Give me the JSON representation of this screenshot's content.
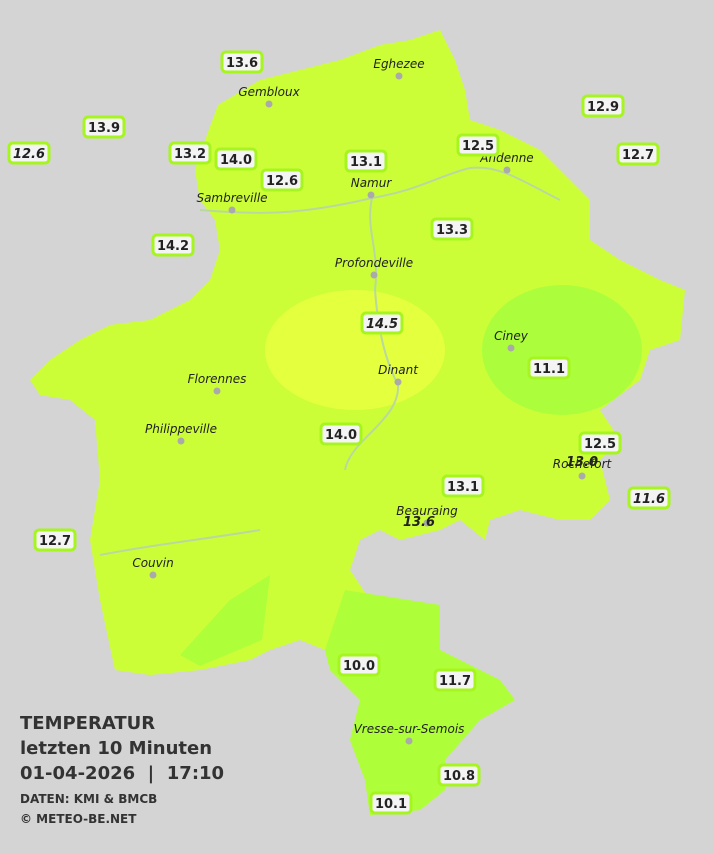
{
  "map": {
    "towns": [
      "Eghezee",
      "Gembloux",
      "Andenne",
      "Namur",
      "Sambreville",
      "Profondeville",
      "Ciney",
      "Dinant",
      "Florennes",
      "Philippeville",
      "Rochefort",
      "Beauraing",
      "Couvin",
      "Vresse-sur-Semois"
    ],
    "stations": [
      {
        "value": "13.6"
      },
      {
        "value": "13.9"
      },
      {
        "value": "12.6",
        "italic": true
      },
      {
        "value": "13.2"
      },
      {
        "value": "14.0"
      },
      {
        "value": "12.6"
      },
      {
        "value": "13.1"
      },
      {
        "value": "12.5"
      },
      {
        "value": "12.9"
      },
      {
        "value": "12.7"
      },
      {
        "value": "14.2"
      },
      {
        "value": "13.3"
      },
      {
        "value": "14.5",
        "italic": true
      },
      {
        "value": "11.1"
      },
      {
        "value": "14.0"
      },
      {
        "value": "12.5"
      },
      {
        "value": "13.0",
        "italic": true,
        "box": false
      },
      {
        "value": "13.1"
      },
      {
        "value": "11.6",
        "italic": true
      },
      {
        "value": "13.6",
        "italic": true,
        "box": false
      },
      {
        "value": "12.7"
      },
      {
        "value": "10.0"
      },
      {
        "value": "11.7"
      },
      {
        "value": "10.8"
      },
      {
        "value": "10.1"
      }
    ],
    "title": "TEMPERATUR",
    "subtitle": "letzten 10 Minuten",
    "datetime": "01-04-2026  |  17:10",
    "source": "DATEN: KMI & BMCB",
    "copyright": "© METEO-BE.NET"
  }
}
